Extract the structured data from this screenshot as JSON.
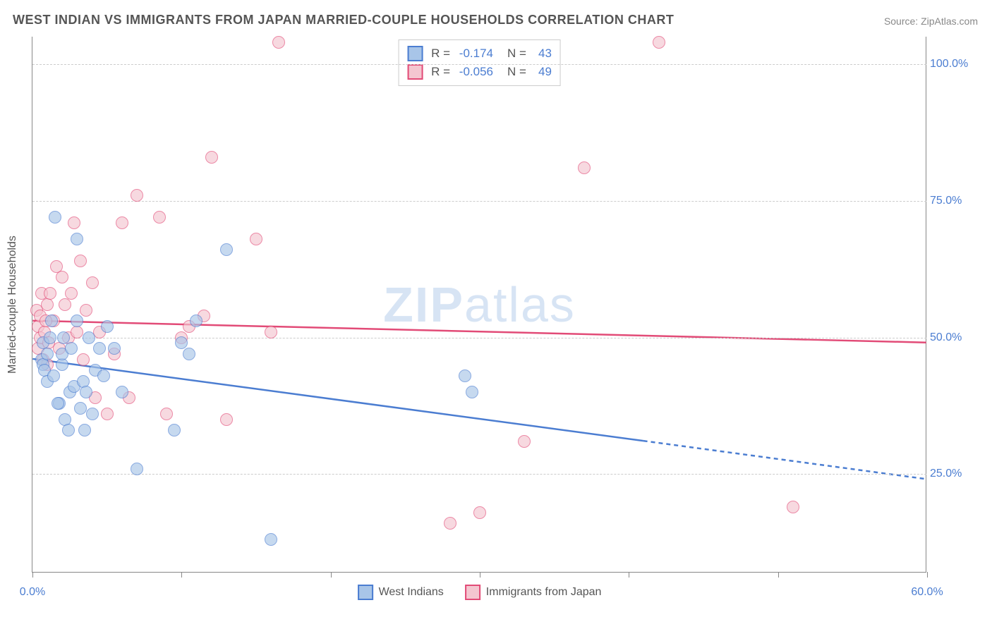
{
  "title": "WEST INDIAN VS IMMIGRANTS FROM JAPAN MARRIED-COUPLE HOUSEHOLDS CORRELATION CHART",
  "source": "Source: ZipAtlas.com",
  "watermark_bold": "ZIP",
  "watermark_thin": "atlas",
  "y_axis_label": "Married-couple Households",
  "colors": {
    "series1_fill": "#a8c5e8",
    "series1_stroke": "#4b7dd1",
    "series2_fill": "#f4c6d0",
    "series2_stroke": "#e24b77",
    "axis_text": "#4b7dd1",
    "grid": "#cccccc",
    "text": "#555555"
  },
  "x_domain": [
    0,
    60
  ],
  "y_domain": [
    7,
    105
  ],
  "y_gridlines": [
    {
      "value": 25,
      "label": "25.0%"
    },
    {
      "value": 50,
      "label": "50.0%"
    },
    {
      "value": 75,
      "label": "75.0%"
    },
    {
      "value": 100,
      "label": "100.0%"
    }
  ],
  "x_ticks": [
    0,
    10,
    20,
    30,
    40,
    50,
    60
  ],
  "x_tick_labels": {
    "0": "0.0%",
    "60": "60.0%"
  },
  "legend": {
    "r_label": "R =",
    "n_label": "N =",
    "series": [
      {
        "r": "-0.174",
        "n": "43"
      },
      {
        "r": "-0.056",
        "n": "49"
      }
    ]
  },
  "bottom_legend": {
    "series1": "West Indians",
    "series2": "Immigrants from Japan"
  },
  "trend_lines": {
    "blue": {
      "x1": 0,
      "y1": 46,
      "x2": 41,
      "y2": 31,
      "x2_dash": 60,
      "y2_dash": 24
    },
    "pink": {
      "x1": 0,
      "y1": 53,
      "x2": 60,
      "y2": 49
    }
  },
  "series1_points": [
    [
      0.6,
      46
    ],
    [
      0.7,
      49
    ],
    [
      0.7,
      45
    ],
    [
      0.8,
      44
    ],
    [
      1.0,
      47
    ],
    [
      1.0,
      42
    ],
    [
      1.2,
      50
    ],
    [
      1.3,
      53
    ],
    [
      1.5,
      72
    ],
    [
      1.8,
      38
    ],
    [
      2.0,
      45
    ],
    [
      2.0,
      47
    ],
    [
      2.2,
      35
    ],
    [
      2.4,
      33
    ],
    [
      2.5,
      40
    ],
    [
      2.6,
      48
    ],
    [
      2.8,
      41
    ],
    [
      3.0,
      53
    ],
    [
      3.0,
      68
    ],
    [
      3.2,
      37
    ],
    [
      3.4,
      42
    ],
    [
      3.5,
      33
    ],
    [
      3.6,
      40
    ],
    [
      3.8,
      50
    ],
    [
      4.0,
      36
    ],
    [
      4.2,
      44
    ],
    [
      4.5,
      48
    ],
    [
      4.8,
      43
    ],
    [
      5.0,
      52
    ],
    [
      5.5,
      48
    ],
    [
      6.0,
      40
    ],
    [
      7.0,
      26
    ],
    [
      9.5,
      33
    ],
    [
      10.0,
      49
    ],
    [
      10.5,
      47
    ],
    [
      11.0,
      53
    ],
    [
      13.0,
      66
    ],
    [
      16.0,
      13
    ],
    [
      29.0,
      43
    ],
    [
      29.5,
      40
    ],
    [
      1.4,
      43
    ],
    [
      1.7,
      38
    ],
    [
      2.1,
      50
    ]
  ],
  "series2_points": [
    [
      0.3,
      55
    ],
    [
      0.4,
      48
    ],
    [
      0.4,
      52
    ],
    [
      0.5,
      50
    ],
    [
      0.5,
      54
    ],
    [
      0.6,
      58
    ],
    [
      0.7,
      46
    ],
    [
      0.8,
      51
    ],
    [
      1.0,
      56
    ],
    [
      1.0,
      45
    ],
    [
      1.2,
      58
    ],
    [
      1.4,
      53
    ],
    [
      1.6,
      63
    ],
    [
      1.8,
      48
    ],
    [
      2.0,
      61
    ],
    [
      2.2,
      56
    ],
    [
      2.4,
      50
    ],
    [
      2.6,
      58
    ],
    [
      2.8,
      71
    ],
    [
      3.0,
      51
    ],
    [
      3.2,
      64
    ],
    [
      3.4,
      46
    ],
    [
      3.6,
      55
    ],
    [
      4.0,
      60
    ],
    [
      4.2,
      39
    ],
    [
      4.5,
      51
    ],
    [
      5.0,
      36
    ],
    [
      5.5,
      47
    ],
    [
      6.0,
      71
    ],
    [
      6.5,
      39
    ],
    [
      7.0,
      76
    ],
    [
      8.5,
      72
    ],
    [
      9.0,
      36
    ],
    [
      10.0,
      50
    ],
    [
      10.5,
      52
    ],
    [
      11.5,
      54
    ],
    [
      12.0,
      83
    ],
    [
      13.0,
      35
    ],
    [
      15.0,
      68
    ],
    [
      16.0,
      51
    ],
    [
      16.5,
      104
    ],
    [
      28.0,
      16
    ],
    [
      30.0,
      18
    ],
    [
      33.0,
      31
    ],
    [
      37.0,
      81
    ],
    [
      42.0,
      104
    ],
    [
      51.0,
      19
    ],
    [
      1.1,
      49
    ],
    [
      0.9,
      53
    ]
  ]
}
